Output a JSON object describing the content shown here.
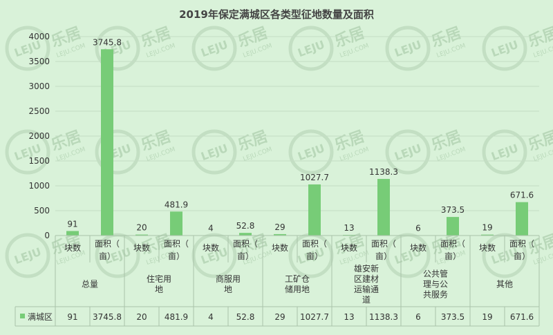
{
  "chart_data": {
    "type": "bar",
    "title": "2019年保定满城区各类型征地数量及面积",
    "ylim": [
      0,
      4000
    ],
    "yticks": [
      0,
      500,
      1000,
      1500,
      2000,
      2500,
      3000,
      3500,
      4000
    ],
    "grid": true,
    "legend": "data-table",
    "categories": [
      {
        "group": "总量",
        "lines": [
          "总量"
        ],
        "count": 91,
        "area": 3745.8
      },
      {
        "group": "住宅用地",
        "lines": [
          "住宅用",
          "地"
        ],
        "count": 20,
        "area": 481.9
      },
      {
        "group": "商服用地",
        "lines": [
          "商服用",
          "地"
        ],
        "count": 4,
        "area": 52.8
      },
      {
        "group": "工矿仓储用地",
        "lines": [
          "工矿仓",
          "储用地"
        ],
        "count": 29,
        "area": 1027.7
      },
      {
        "group": "雄安新区建材运输通道",
        "lines": [
          "雄安新",
          "区建材",
          "运输通",
          "道"
        ],
        "count": 13,
        "area": 1138.3
      },
      {
        "group": "公共管理与公共服务",
        "lines": [
          "公共管",
          "理与公",
          "共服务"
        ],
        "count": 6,
        "area": 373.5
      },
      {
        "group": "其他",
        "lines": [
          "其他"
        ],
        "count": 19,
        "area": 671.6
      }
    ],
    "sub_labels": {
      "count": [
        "块数"
      ],
      "area": [
        "面积（",
        "亩）"
      ]
    },
    "series": [
      {
        "name": "满城区",
        "color": "#77cc77"
      }
    ]
  },
  "watermark": {
    "brand": "乐居",
    "logo": "LEJU",
    "site": "LEJU.COM"
  }
}
